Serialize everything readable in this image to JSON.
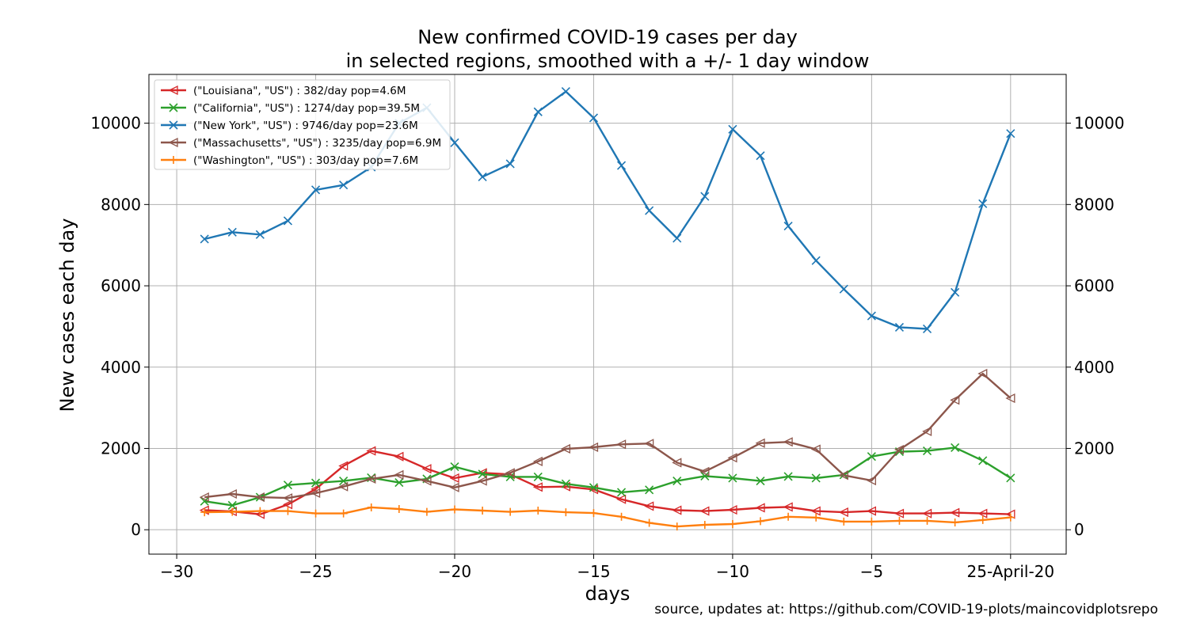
{
  "chart_data": {
    "type": "line",
    "title_line1": "New confirmed COVID-19 cases per day",
    "title_line2": "in selected regions, smoothed with a +/- 1 day window",
    "xlabel": "days",
    "ylabel": "New cases each day",
    "source": "source, updates at: https://github.com/COVID-19-plots/maincovidplotsrepo",
    "xlim": [
      -31,
      2
    ],
    "ylim": [
      -600,
      11200
    ],
    "xticks": [
      -30,
      -25,
      -20,
      -15,
      -10,
      -5
    ],
    "xtick_labels": [
      "−30",
      "−25",
      "−20",
      "−15",
      "−10",
      "−5"
    ],
    "last_xtick": {
      "value": 0,
      "label": "25-April-20"
    },
    "yticks": [
      0,
      2000,
      4000,
      6000,
      8000,
      10000
    ],
    "ytick_labels": [
      "0",
      "2000",
      "4000",
      "6000",
      "8000",
      "10000"
    ],
    "grid": true,
    "legend_position": "top-left",
    "x": [
      -29,
      -28,
      -27,
      -26,
      -25,
      -24,
      -23,
      -22,
      -21,
      -20,
      -19,
      -18,
      -17,
      -16,
      -15,
      -14,
      -13,
      -12,
      -11,
      -10,
      -9,
      -8,
      -7,
      -6,
      -5,
      -4,
      -3,
      -2,
      -1,
      0
    ],
    "series": [
      {
        "name": "(\"Louisiana\", \"US\") : 382/day pop=4.6M",
        "color": "#d62728",
        "marker": "triangle-left",
        "values": [
          480,
          450,
          380,
          620,
          1000,
          1570,
          1940,
          1800,
          1500,
          1270,
          1400,
          1360,
          1050,
          1060,
          990,
          750,
          580,
          480,
          460,
          490,
          540,
          560,
          460,
          430,
          460,
          400,
          400,
          420,
          400,
          382
        ]
      },
      {
        "name": "(\"California\", \"US\") : 1274/day pop=39.5M",
        "color": "#2ca02c",
        "marker": "x",
        "values": [
          700,
          600,
          800,
          1100,
          1150,
          1200,
          1280,
          1160,
          1250,
          1550,
          1370,
          1300,
          1300,
          1130,
          1040,
          920,
          980,
          1200,
          1320,
          1270,
          1200,
          1310,
          1270,
          1350,
          1800,
          1920,
          1940,
          2020,
          1700,
          1274
        ]
      },
      {
        "name": "(\"New York\", \"US\") : 9746/day pop=23.6M",
        "color": "#1f77b4",
        "marker": "x",
        "values": [
          7150,
          7320,
          7260,
          7600,
          8360,
          8480,
          8920,
          10000,
          10380,
          9520,
          8680,
          9000,
          10280,
          10780,
          10130,
          8960,
          7850,
          7170,
          8200,
          9850,
          9200,
          7470,
          6620,
          5920,
          5260,
          4980,
          4940,
          5840,
          8020,
          9746
        ]
      },
      {
        "name": "(\"Massachusetts\", \"US\") : 3235/day pop=6.9M",
        "color": "#8c564b",
        "marker": "triangle-left",
        "values": [
          800,
          880,
          800,
          780,
          900,
          1060,
          1250,
          1350,
          1200,
          1040,
          1200,
          1400,
          1680,
          1990,
          2030,
          2100,
          2120,
          1650,
          1430,
          1770,
          2130,
          2160,
          1980,
          1340,
          1210,
          1970,
          2420,
          3190,
          3840,
          3235
        ]
      },
      {
        "name": "(\"Washington\", \"US\") : 303/day pop=7.6M",
        "color": "#ff7f0e",
        "marker": "plus",
        "values": [
          430,
          440,
          460,
          460,
          400,
          400,
          550,
          510,
          440,
          500,
          470,
          440,
          470,
          430,
          410,
          320,
          170,
          80,
          120,
          140,
          210,
          320,
          300,
          200,
          200,
          220,
          220,
          180,
          240,
          303
        ]
      }
    ]
  }
}
